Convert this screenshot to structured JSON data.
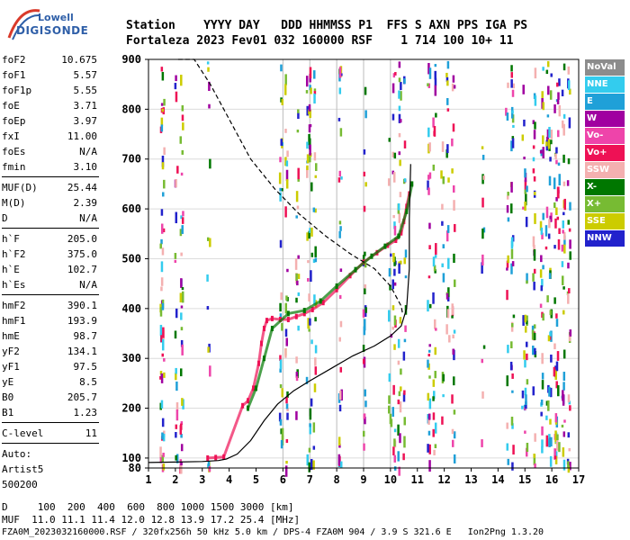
{
  "logo": {
    "line1": "Lowell",
    "line2": "DIGISONDE"
  },
  "header": {
    "line1": "Station    YYYY DAY   DDD HHMMSS P1  FFS S AXN PPS IGA PS",
    "line2": "Fortaleza 2023 Fev01 032 160000 RSF    1 714 100 10+ 11"
  },
  "params": [
    {
      "label": "foF2",
      "value": "10.675"
    },
    {
      "label": "foF1",
      "value": "5.57"
    },
    {
      "label": "foF1p",
      "value": "5.55"
    },
    {
      "label": "foE",
      "value": "3.71"
    },
    {
      "label": "foEp",
      "value": "3.97"
    },
    {
      "label": "fxI",
      "value": "11.00"
    },
    {
      "label": "foEs",
      "value": "N/A"
    },
    {
      "label": "fmin",
      "value": "3.10"
    },
    {
      "sep": true
    },
    {
      "label": "MUF(D)",
      "value": "25.44"
    },
    {
      "label": "M(D)",
      "value": "2.39"
    },
    {
      "label": "D",
      "value": "N/A"
    },
    {
      "sep": true
    },
    {
      "label": "h`F",
      "value": "205.0"
    },
    {
      "label": "h`F2",
      "value": "375.0"
    },
    {
      "label": "h`E",
      "value": "102.7"
    },
    {
      "label": "h`Es",
      "value": "N/A"
    },
    {
      "sep": true
    },
    {
      "label": "hmF2",
      "value": "390.1"
    },
    {
      "label": "hmF1",
      "value": "193.9"
    },
    {
      "label": "hmE",
      "value": "98.7"
    },
    {
      "label": "yF2",
      "value": "134.1"
    },
    {
      "label": "yF1",
      "value": "97.5"
    },
    {
      "label": "yE",
      "value": "8.5"
    },
    {
      "label": "B0",
      "value": "205.7"
    },
    {
      "label": "B1",
      "value": "1.23"
    },
    {
      "sep": true
    },
    {
      "label": "C-level",
      "value": "11"
    },
    {
      "sep": true
    },
    {
      "label": "Auto:",
      "value": ""
    },
    {
      "label": "Artist5",
      "value": ""
    },
    {
      "label": "500200",
      "value": ""
    }
  ],
  "legend": [
    {
      "label": "NoVal",
      "color": "#8c8c8c"
    },
    {
      "label": "NNE",
      "color": "#33ccee"
    },
    {
      "label": "E",
      "color": "#1fa0d8"
    },
    {
      "label": "W",
      "color": "#a000a0"
    },
    {
      "label": "Vo-",
      "color": "#ee44aa"
    },
    {
      "label": "Vo+",
      "color": "#ee1155"
    },
    {
      "label": "SSW",
      "color": "#f4b0b0"
    },
    {
      "label": "X-",
      "color": "#007700"
    },
    {
      "label": "X+",
      "color": "#77bb33"
    },
    {
      "label": "SSE",
      "color": "#cccc00"
    },
    {
      "label": "NNW",
      "color": "#2222cc"
    }
  ],
  "footer": {
    "line1": "D     100  200  400  600  800 1000 1500 3000 [km]",
    "line2": "MUF  11.0 11.1 11.4 12.0 12.8 13.9 17.2 25.4 [MHz]",
    "line3": "FZA0M_2023032160000.RSF / 320fx256h 50 kHz 5.0 km / DPS-4 FZA0M 904 / 3.9 S 321.6 E   Ion2Png 1.3.20"
  },
  "chart_data": {
    "type": "scatter",
    "xlim": [
      1,
      17
    ],
    "ylim": [
      80,
      900
    ],
    "x_ticks": [
      1,
      2,
      3,
      4,
      5,
      6,
      7,
      8,
      9,
      10,
      11,
      12,
      13,
      14,
      15,
      16,
      17
    ],
    "y_ticks": [
      100,
      200,
      300,
      400,
      500,
      600,
      700,
      800,
      900
    ],
    "grid": true,
    "vertical_gridlines_x": [
      6,
      7,
      8,
      9,
      10
    ],
    "series": [
      {
        "name": "Vo+",
        "color": "#ee1155",
        "points": [
          [
            3.2,
            100
          ],
          [
            3.5,
            101
          ],
          [
            3.8,
            102
          ],
          [
            4.5,
            205
          ],
          [
            4.7,
            215
          ],
          [
            4.9,
            240
          ],
          [
            5.1,
            290
          ],
          [
            5.2,
            330
          ],
          [
            5.3,
            360
          ],
          [
            5.4,
            376
          ],
          [
            5.6,
            380
          ],
          [
            5.9,
            378
          ],
          [
            6.2,
            378
          ],
          [
            6.5,
            384
          ],
          [
            6.8,
            390
          ],
          [
            7.1,
            398
          ],
          [
            7.5,
            412
          ],
          [
            8.0,
            438
          ],
          [
            8.5,
            466
          ],
          [
            9.0,
            493
          ],
          [
            9.5,
            512
          ],
          [
            9.9,
            527
          ],
          [
            10.2,
            537
          ],
          [
            10.4,
            552
          ],
          [
            10.5,
            575
          ],
          [
            10.6,
            605
          ],
          [
            10.7,
            630
          ]
        ]
      },
      {
        "name": "X-",
        "color": "#007700",
        "points": [
          [
            4.7,
            200
          ],
          [
            5.0,
            240
          ],
          [
            5.3,
            300
          ],
          [
            5.6,
            360
          ],
          [
            6.2,
            390
          ],
          [
            6.8,
            396
          ],
          [
            7.4,
            415
          ],
          [
            8.0,
            445
          ],
          [
            8.7,
            478
          ],
          [
            9.3,
            505
          ],
          [
            9.8,
            525
          ],
          [
            10.3,
            545
          ],
          [
            10.6,
            595
          ],
          [
            10.8,
            650
          ]
        ]
      },
      {
        "name": "profile",
        "color": "#000000",
        "points": [
          [
            1.0,
            91
          ],
          [
            2.0,
            92
          ],
          [
            3.0,
            93
          ],
          [
            3.6,
            95
          ],
          [
            3.9,
            98
          ],
          [
            4.3,
            108
          ],
          [
            4.8,
            135
          ],
          [
            5.3,
            175
          ],
          [
            5.8,
            208
          ],
          [
            6.4,
            235
          ],
          [
            7.0,
            255
          ],
          [
            7.8,
            280
          ],
          [
            8.6,
            305
          ],
          [
            9.4,
            325
          ],
          [
            10.0,
            345
          ],
          [
            10.4,
            365
          ],
          [
            10.6,
            400
          ],
          [
            10.7,
            480
          ],
          [
            10.7,
            580
          ],
          [
            10.75,
            690
          ]
        ]
      },
      {
        "name": "model",
        "color": "#000000",
        "dashed": true,
        "points": [
          [
            2.1,
            900
          ],
          [
            2.7,
            900
          ],
          [
            3.3,
            850
          ],
          [
            4.0,
            780
          ],
          [
            4.8,
            700
          ],
          [
            5.7,
            640
          ],
          [
            6.6,
            590
          ],
          [
            7.6,
            545
          ],
          [
            8.5,
            510
          ],
          [
            9.4,
            480
          ],
          [
            10.0,
            445
          ],
          [
            10.4,
            405
          ],
          [
            10.45,
            390
          ]
        ]
      }
    ]
  }
}
